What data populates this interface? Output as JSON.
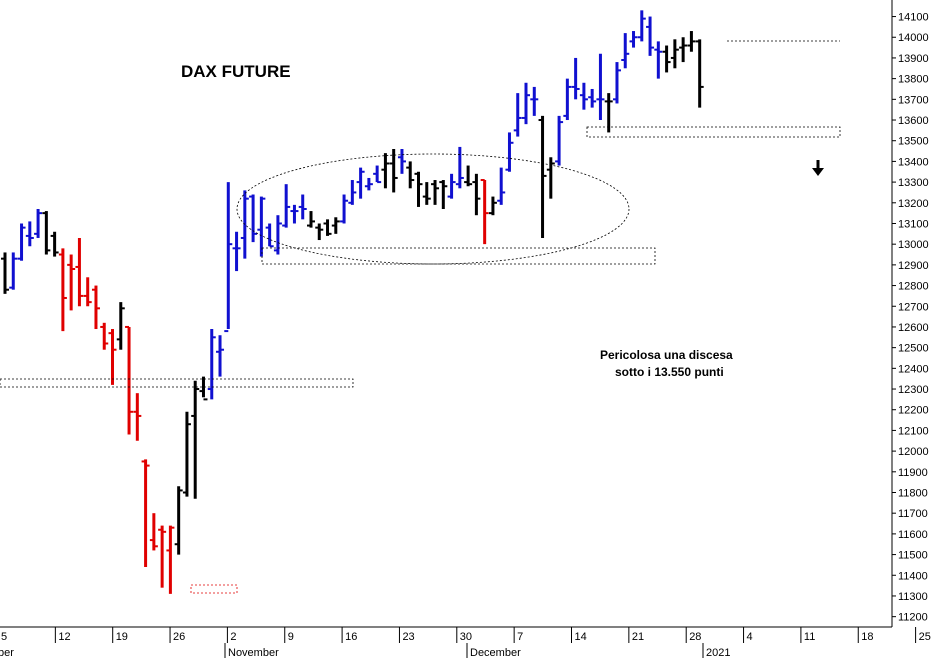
{
  "chart_data": {
    "type": "ohlc",
    "title": "DAX FUTURE",
    "annotation_lines": [
      "Pericolosa una discesa",
      "sotto i 13.550 punti"
    ],
    "ylim": [
      11150,
      14180
    ],
    "y_ticks": [
      11200,
      11300,
      11400,
      11500,
      11600,
      11700,
      11800,
      11900,
      12000,
      12100,
      12200,
      12300,
      12400,
      12500,
      12600,
      12700,
      12800,
      12900,
      13000,
      13100,
      13200,
      13300,
      13400,
      13500,
      13600,
      13700,
      13800,
      13900,
      14000,
      14100
    ],
    "x_day_ticks": [
      "5",
      "12",
      "19",
      "26",
      "2",
      "9",
      "16",
      "23",
      "30",
      "7",
      "14",
      "21",
      "28",
      "4",
      "11",
      "18",
      "25"
    ],
    "x_month_labels": [
      "ber",
      "November",
      "December",
      "2021"
    ],
    "colors": {
      "up": "#1010d0",
      "down": "#e00000",
      "neutral": "#000000"
    },
    "series": [
      {
        "o": 12930,
        "h": 12960,
        "l": 12760,
        "c": 12780,
        "color": "black"
      },
      {
        "o": 12790,
        "h": 12960,
        "l": 12780,
        "c": 12930,
        "color": "blue"
      },
      {
        "o": 12930,
        "h": 13100,
        "l": 12920,
        "c": 13080,
        "color": "blue"
      },
      {
        "o": 13040,
        "h": 13110,
        "l": 12990,
        "c": 13030,
        "color": "blue"
      },
      {
        "o": 13050,
        "h": 13170,
        "l": 13030,
        "c": 13150,
        "color": "blue"
      },
      {
        "o": 13150,
        "h": 13160,
        "l": 12950,
        "c": 12970,
        "color": "black"
      },
      {
        "o": 13040,
        "h": 13060,
        "l": 12940,
        "c": 12960,
        "color": "black"
      },
      {
        "o": 12950,
        "h": 12980,
        "l": 12580,
        "c": 12740,
        "color": "red"
      },
      {
        "o": 12900,
        "h": 12950,
        "l": 12680,
        "c": 12880,
        "color": "red"
      },
      {
        "o": 12890,
        "h": 13030,
        "l": 12700,
        "c": 12750,
        "color": "red"
      },
      {
        "o": 12750,
        "h": 12840,
        "l": 12700,
        "c": 12720,
        "color": "red"
      },
      {
        "o": 12780,
        "h": 12800,
        "l": 12590,
        "c": 12690,
        "color": "red"
      },
      {
        "o": 12600,
        "h": 12620,
        "l": 12490,
        "c": 12520,
        "color": "red"
      },
      {
        "o": 12570,
        "h": 12590,
        "l": 12320,
        "c": 12490,
        "color": "red"
      },
      {
        "o": 12540,
        "h": 12720,
        "l": 12490,
        "c": 12690,
        "color": "black"
      },
      {
        "o": 12600,
        "h": 12600,
        "l": 12080,
        "c": 12190,
        "color": "red"
      },
      {
        "o": 12190,
        "h": 12280,
        "l": 12050,
        "c": 12170,
        "color": "red"
      },
      {
        "o": 11950,
        "h": 11960,
        "l": 11440,
        "c": 11930,
        "color": "red"
      },
      {
        "o": 11570,
        "h": 11700,
        "l": 11520,
        "c": 11540,
        "color": "red"
      },
      {
        "o": 11620,
        "h": 11640,
        "l": 11340,
        "c": 11610,
        "color": "red"
      },
      {
        "o": 11520,
        "h": 11640,
        "l": 11310,
        "c": 11630,
        "color": "red"
      },
      {
        "o": 11550,
        "h": 11830,
        "l": 11500,
        "c": 11810,
        "color": "black"
      },
      {
        "o": 11800,
        "h": 12190,
        "l": 11780,
        "c": 12130,
        "color": "black"
      },
      {
        "o": 12170,
        "h": 12340,
        "l": 11770,
        "c": 12300,
        "color": "black"
      },
      {
        "o": 12290,
        "h": 12360,
        "l": 12260,
        "c": 12250,
        "color": "black"
      },
      {
        "o": 12300,
        "h": 12590,
        "l": 12250,
        "c": 12550,
        "color": "blue"
      },
      {
        "o": 12480,
        "h": 12560,
        "l": 12360,
        "c": 12490,
        "color": "blue"
      },
      {
        "o": 12580,
        "h": 13300,
        "l": 12590,
        "c": 13000,
        "color": "blue"
      },
      {
        "o": 12980,
        "h": 13060,
        "l": 12870,
        "c": 12980,
        "color": "blue"
      },
      {
        "o": 13030,
        "h": 13260,
        "l": 12930,
        "c": 13220,
        "color": "blue"
      },
      {
        "o": 13230,
        "h": 13240,
        "l": 13010,
        "c": 13050,
        "color": "blue"
      },
      {
        "o": 13070,
        "h": 13230,
        "l": 12940,
        "c": 13220,
        "color": "blue"
      },
      {
        "o": 13080,
        "h": 13100,
        "l": 12990,
        "c": 12990,
        "color": "blue"
      },
      {
        "o": 12970,
        "h": 13140,
        "l": 12950,
        "c": 13100,
        "color": "blue"
      },
      {
        "o": 13090,
        "h": 13290,
        "l": 13080,
        "c": 13180,
        "color": "blue"
      },
      {
        "o": 13160,
        "h": 13190,
        "l": 13100,
        "c": 13160,
        "color": "blue"
      },
      {
        "o": 13180,
        "h": 13240,
        "l": 13120,
        "c": 13170,
        "color": "blue"
      },
      {
        "o": 13090,
        "h": 13160,
        "l": 13080,
        "c": 13110,
        "color": "black"
      },
      {
        "o": 13080,
        "h": 13100,
        "l": 13020,
        "c": 13070,
        "color": "black"
      },
      {
        "o": 13100,
        "h": 13120,
        "l": 13040,
        "c": 13050,
        "color": "black"
      },
      {
        "o": 13090,
        "h": 13130,
        "l": 13050,
        "c": 13110,
        "color": "black"
      },
      {
        "o": 13110,
        "h": 13240,
        "l": 13100,
        "c": 13210,
        "color": "blue"
      },
      {
        "o": 13200,
        "h": 13310,
        "l": 13190,
        "c": 13250,
        "color": "blue"
      },
      {
        "o": 13300,
        "h": 13370,
        "l": 13220,
        "c": 13350,
        "color": "blue"
      },
      {
        "o": 13280,
        "h": 13320,
        "l": 13260,
        "c": 13290,
        "color": "blue"
      },
      {
        "o": 13340,
        "h": 13380,
        "l": 13300,
        "c": 13300,
        "color": "blue"
      },
      {
        "o": 13360,
        "h": 13440,
        "l": 13270,
        "c": 13390,
        "color": "black"
      },
      {
        "o": 13390,
        "h": 13460,
        "l": 13250,
        "c": 13320,
        "color": "black"
      },
      {
        "o": 13420,
        "h": 13460,
        "l": 13340,
        "c": 13400,
        "color": "blue"
      },
      {
        "o": 13370,
        "h": 13400,
        "l": 13270,
        "c": 13310,
        "color": "black"
      },
      {
        "o": 13340,
        "h": 13350,
        "l": 13180,
        "c": 13290,
        "color": "black"
      },
      {
        "o": 13230,
        "h": 13300,
        "l": 13190,
        "c": 13220,
        "color": "black"
      },
      {
        "o": 13290,
        "h": 13310,
        "l": 13190,
        "c": 13270,
        "color": "black"
      },
      {
        "o": 13300,
        "h": 13310,
        "l": 13170,
        "c": 13280,
        "color": "black"
      },
      {
        "o": 13230,
        "h": 13340,
        "l": 13220,
        "c": 13300,
        "color": "blue"
      },
      {
        "o": 13290,
        "h": 13470,
        "l": 13270,
        "c": 13320,
        "color": "blue"
      },
      {
        "o": 13300,
        "h": 13380,
        "l": 13280,
        "c": 13290,
        "color": "black"
      },
      {
        "o": 13300,
        "h": 13340,
        "l": 13140,
        "c": 13220,
        "color": "black"
      },
      {
        "o": 13310,
        "h": 13310,
        "l": 13000,
        "c": 13150,
        "color": "red"
      },
      {
        "o": 13150,
        "h": 13230,
        "l": 13140,
        "c": 13200,
        "color": "black"
      },
      {
        "o": 13210,
        "h": 13370,
        "l": 13190,
        "c": 13250,
        "color": "blue"
      },
      {
        "o": 13360,
        "h": 13540,
        "l": 13350,
        "c": 13490,
        "color": "blue"
      },
      {
        "o": 13550,
        "h": 13730,
        "l": 13520,
        "c": 13610,
        "color": "blue"
      },
      {
        "o": 13610,
        "h": 13780,
        "l": 13580,
        "c": 13720,
        "color": "blue"
      },
      {
        "o": 13700,
        "h": 13760,
        "l": 13620,
        "c": 13700,
        "color": "blue"
      },
      {
        "o": 13600,
        "h": 13620,
        "l": 13030,
        "c": 13330,
        "color": "black"
      },
      {
        "o": 13360,
        "h": 13420,
        "l": 13220,
        "c": 13390,
        "color": "black"
      },
      {
        "o": 13400,
        "h": 13620,
        "l": 13380,
        "c": 13590,
        "color": "blue"
      },
      {
        "o": 13620,
        "h": 13800,
        "l": 13600,
        "c": 13760,
        "color": "blue"
      },
      {
        "o": 13760,
        "h": 13900,
        "l": 13700,
        "c": 13750,
        "color": "blue"
      },
      {
        "o": 13720,
        "h": 13780,
        "l": 13650,
        "c": 13700,
        "color": "blue"
      },
      {
        "o": 13710,
        "h": 13750,
        "l": 13660,
        "c": 13690,
        "color": "blue"
      },
      {
        "o": 13700,
        "h": 13920,
        "l": 13600,
        "c": 13700,
        "color": "blue"
      },
      {
        "o": 13690,
        "h": 13730,
        "l": 13540,
        "c": 13690,
        "color": "black"
      },
      {
        "o": 13700,
        "h": 13880,
        "l": 13680,
        "c": 13840,
        "color": "blue"
      },
      {
        "o": 13890,
        "h": 14020,
        "l": 13850,
        "c": 13920,
        "color": "blue"
      },
      {
        "o": 13980,
        "h": 14030,
        "l": 13950,
        "c": 14000,
        "color": "blue"
      },
      {
        "o": 14000,
        "h": 14130,
        "l": 13980,
        "c": 14090,
        "color": "blue"
      },
      {
        "o": 14050,
        "h": 14100,
        "l": 13910,
        "c": 13950,
        "color": "blue"
      },
      {
        "o": 13940,
        "h": 13980,
        "l": 13800,
        "c": 13930,
        "color": "blue"
      },
      {
        "o": 13930,
        "h": 13960,
        "l": 13830,
        "c": 13880,
        "color": "black"
      },
      {
        "o": 13900,
        "h": 13990,
        "l": 13850,
        "c": 13940,
        "color": "black"
      },
      {
        "o": 13950,
        "h": 14000,
        "l": 13880,
        "c": 13960,
        "color": "black"
      },
      {
        "o": 13960,
        "h": 14030,
        "l": 13930,
        "c": 13980,
        "color": "black"
      },
      {
        "o": 13980,
        "h": 13990,
        "l": 13660,
        "c": 13760,
        "color": "black"
      }
    ]
  }
}
